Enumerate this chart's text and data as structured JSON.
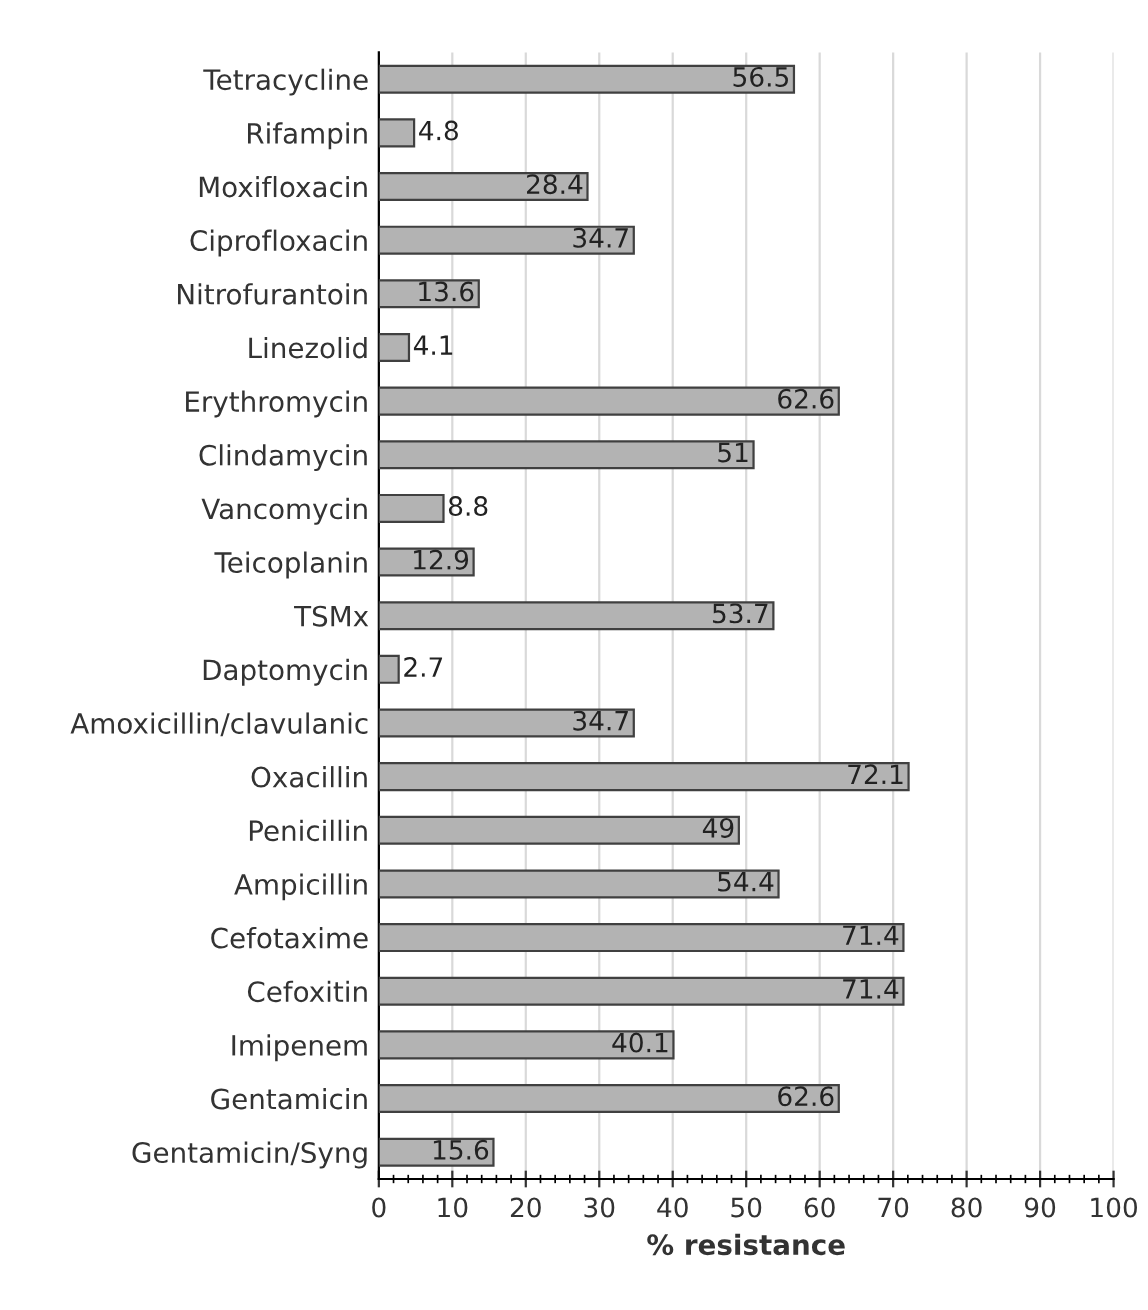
{
  "chart_data": {
    "type": "bar",
    "orientation": "horizontal",
    "xlabel": "% resistance",
    "categories": [
      "Tetracycline",
      "Rifampin",
      "Moxifloxacin",
      "Ciprofloxacin",
      "Nitrofurantoin",
      "Linezolid",
      "Erythromycin",
      "Clindamycin",
      "Vancomycin",
      "Teicoplanin",
      "TSMx",
      "Daptomycin",
      "Amoxicillin/clavulanic",
      "Oxacillin",
      "Penicillin",
      "Ampicillin",
      "Cefotaxime",
      "Cefoxitin",
      "Imipenem",
      "Gentamicin",
      "Gentamicin/Syng"
    ],
    "values": [
      56.5,
      4.8,
      28.4,
      34.7,
      13.6,
      4.1,
      62.6,
      51,
      8.8,
      12.9,
      53.7,
      2.7,
      34.7,
      72.1,
      49,
      54.4,
      71.4,
      71.4,
      40.1,
      62.6,
      15.6
    ],
    "color": "#b3b3b3",
    "data_labels": true,
    "grid": "x",
    "xlim": [
      0,
      100
    ],
    "xticks": [
      0,
      10,
      20,
      30,
      40,
      50,
      60,
      70,
      80,
      90,
      100
    ]
  }
}
